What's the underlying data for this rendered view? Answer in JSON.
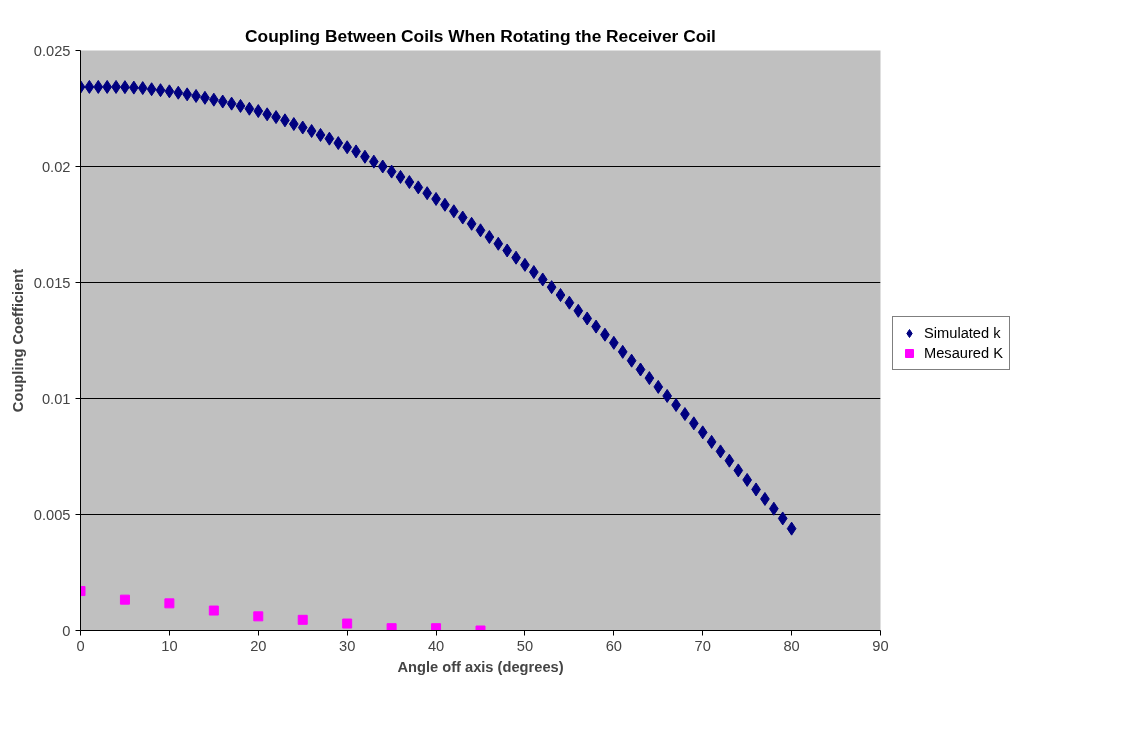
{
  "chart_data": {
    "type": "scatter",
    "title": "Coupling Between Coils When Rotating the Receiver Coil",
    "xlabel": "Angle off axis (degrees)",
    "ylabel": "Coupling Coefficient",
    "xlim": [
      0,
      90
    ],
    "xticks": [
      0,
      10,
      20,
      30,
      40,
      50,
      60,
      70,
      80,
      90
    ],
    "ylim": [
      0,
      0.025
    ],
    "yticks": [
      0,
      0.005,
      0.01,
      0.015,
      0.02,
      0.025
    ],
    "grid": "y",
    "legend": "right",
    "series": [
      {
        "name": "Simulated k",
        "color": "#000080",
        "marker": "diamond",
        "x": [
          0,
          1,
          2,
          3,
          4,
          5,
          6,
          7,
          8,
          9,
          10,
          11,
          12,
          13,
          14,
          15,
          16,
          17,
          18,
          19,
          20,
          21,
          22,
          23,
          24,
          25,
          26,
          27,
          28,
          29,
          30,
          31,
          32,
          33,
          34,
          35,
          36,
          37,
          38,
          39,
          40,
          41,
          42,
          43,
          44,
          45,
          46,
          47,
          48,
          49,
          50,
          51,
          52,
          53,
          54,
          55,
          56,
          57,
          58,
          59,
          60,
          61,
          62,
          63,
          64,
          65,
          66,
          67,
          68,
          69,
          70,
          71,
          72,
          73,
          74,
          75,
          76,
          77,
          78,
          79,
          80
        ],
        "values": [
          0.02343,
          0.02343,
          0.02343,
          0.02343,
          0.02343,
          0.02342,
          0.0234,
          0.02338,
          0.02333,
          0.02329,
          0.02324,
          0.02318,
          0.02311,
          0.02304,
          0.02296,
          0.02288,
          0.0228,
          0.02271,
          0.02261,
          0.02249,
          0.02239,
          0.02225,
          0.02213,
          0.02199,
          0.02183,
          0.02168,
          0.02153,
          0.02136,
          0.0212,
          0.02101,
          0.02083,
          0.02065,
          0.02042,
          0.02021,
          0.02,
          0.01978,
          0.01955,
          0.01933,
          0.0191,
          0.01885,
          0.0186,
          0.01835,
          0.01807,
          0.0178,
          0.01753,
          0.01725,
          0.01696,
          0.01667,
          0.01638,
          0.01607,
          0.01576,
          0.01545,
          0.01513,
          0.0148,
          0.01446,
          0.01413,
          0.01378,
          0.01345,
          0.0131,
          0.01275,
          0.0124,
          0.01201,
          0.01163,
          0.01125,
          0.01088,
          0.0105,
          0.01011,
          0.00972,
          0.00933,
          0.00893,
          0.00854,
          0.00813,
          0.00772,
          0.00732,
          0.0069,
          0.00649,
          0.00608,
          0.00567,
          0.00525,
          0.00483,
          0.00439
        ]
      },
      {
        "name": "Mesaured K",
        "color": "#ff00ff",
        "marker": "square",
        "x": [
          0,
          5,
          10,
          15,
          20,
          25,
          30,
          35,
          40,
          45
        ],
        "values": [
          0.0017,
          0.00133,
          0.00117,
          0.00086,
          0.00061,
          0.00046,
          0.0003,
          0.0001,
          0.0001,
          0.0
        ]
      }
    ]
  }
}
